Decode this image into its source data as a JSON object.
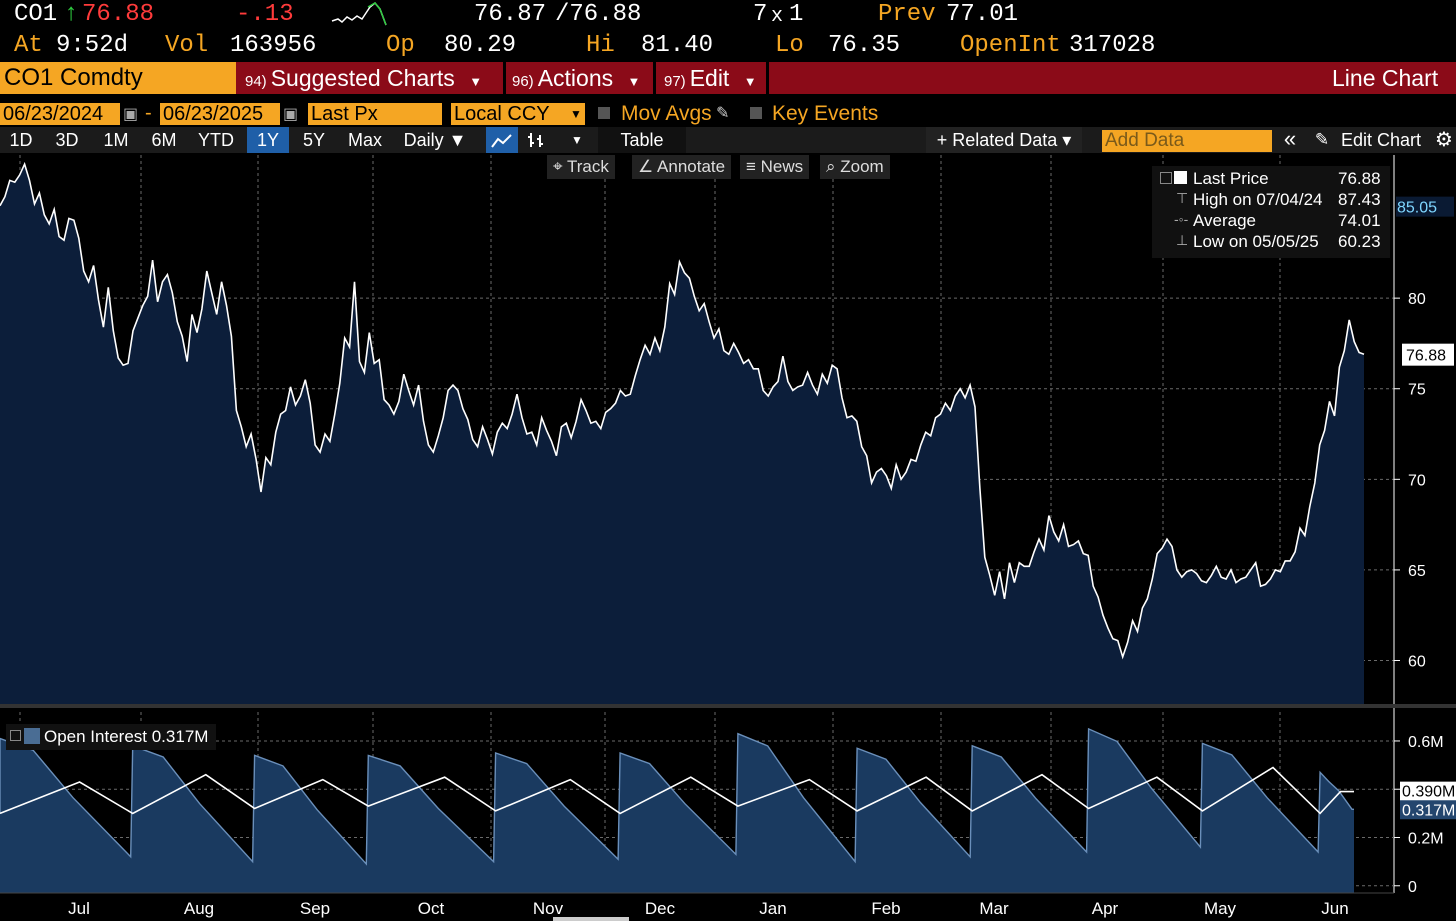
{
  "quote": {
    "ticker": "CO1",
    "arrow": "↑",
    "last": "76.88",
    "change": "-.13",
    "bid_ask": "76.87",
    "ask": "/76.88",
    "size": "7",
    "size_x": "x",
    "size2": "1",
    "prev_label": "Prev",
    "prev": "77.01",
    "at_label": "At",
    "at_time": "9:52d",
    "vol_label": "Vol",
    "vol": "163956",
    "op_label": "Op",
    "op": "80.29",
    "hi_label": "Hi",
    "hi": "81.40",
    "lo_label": "Lo",
    "lo": "76.35",
    "openint_label": "OpenInt",
    "openint": "317028"
  },
  "menubar": {
    "security": "CO1 Comdty",
    "items": [
      {
        "num": "94)",
        "label": "Suggested Charts"
      },
      {
        "num": "96)",
        "label": "Actions"
      },
      {
        "num": "97)",
        "label": "Edit"
      }
    ],
    "right_label": "Line Chart"
  },
  "range": {
    "start": "06/23/2024",
    "dash": "-",
    "end": "06/23/2025",
    "field": "Last Px",
    "currency": "Local CCY",
    "mov_avgs": "Mov Avgs",
    "key_events": "Key Events"
  },
  "toolbar": {
    "periods": [
      "1D",
      "3D",
      "1M",
      "6M",
      "YTD",
      "1Y",
      "5Y",
      "Max"
    ],
    "active_period": "1Y",
    "frequency": "Daily ▼",
    "table": "Table",
    "related": "+ Related Data ▾",
    "add_data_placeholder": "Add Data",
    "collapse": "«",
    "edit_chart": "Edit Chart"
  },
  "tools": {
    "track": "Track",
    "annotate": "Annotate",
    "news": "News",
    "zoom": "Zoom"
  },
  "legend": {
    "rows": [
      {
        "label": "Last Price",
        "value": "76.88"
      },
      {
        "label": "High on 07/04/24",
        "value": "87.43"
      },
      {
        "label": "Average",
        "value": "74.01"
      },
      {
        "label": "Low on 05/05/25",
        "value": "60.23"
      }
    ]
  },
  "lower_legend": {
    "label": "Open Interest 0.317M"
  },
  "colors": {
    "amber": "#f5a623",
    "price_fill": "#0c1e3a",
    "oi_fill": "#1a3a60",
    "menubar": "#8b0b18",
    "active_tab": "#1f5fa8"
  },
  "chart_data": [
    {
      "type": "area",
      "title": "",
      "series": [
        {
          "name": "Last Price"
        }
      ],
      "x_ticks": [
        "Jul",
        "Aug",
        "Sep",
        "Oct",
        "Nov",
        "Dec",
        "Jan",
        "Feb",
        "Mar",
        "Apr",
        "May",
        "Jun"
      ],
      "y_ticks": [
        60,
        65,
        70,
        75,
        80
      ],
      "ylim": [
        57.6,
        87.9
      ],
      "current_label": "76.88",
      "marker_label": "85.05",
      "marker_value": 85.05,
      "grid": true,
      "values": [
        85.1,
        85.6,
        86.5,
        86.4,
        86.8,
        87.4,
        86.5,
        85.2,
        85.8,
        84.6,
        84.1,
        84.9,
        83.4,
        83.2,
        84.4,
        84.3,
        83.3,
        81.5,
        80.9,
        81.8,
        79.9,
        78.4,
        80.6,
        78.2,
        76.7,
        76.3,
        76.4,
        78.2,
        78.9,
        79.6,
        80.1,
        82.1,
        79.8,
        80.9,
        81.3,
        80.3,
        78.7,
        77.9,
        76.5,
        79.1,
        78.1,
        79.4,
        81.5,
        80.3,
        79.1,
        80.9,
        79.6,
        77.9,
        73.8,
        72.9,
        71.8,
        72.5,
        71.1,
        69.3,
        71.2,
        70.8,
        72.6,
        73.6,
        73.8,
        75.1,
        74.1,
        74.6,
        75.5,
        74.2,
        71.9,
        71.5,
        72.5,
        72.1,
        73.6,
        75.3,
        77.8,
        77.3,
        80.9,
        76.5,
        75.9,
        78.1,
        76.4,
        76.6,
        74.4,
        74.1,
        73.6,
        74.3,
        75.8,
        74.9,
        74.1,
        75.2,
        73.2,
        71.9,
        71.5,
        72.4,
        73.4,
        74.9,
        75.2,
        74.9,
        73.9,
        73.3,
        72.2,
        71.8,
        72.9,
        72.2,
        71.4,
        72.6,
        73.1,
        72.8,
        73.6,
        74.7,
        73.4,
        72.5,
        72.6,
        71.9,
        73.4,
        72.7,
        72.1,
        71.3,
        72.9,
        73.1,
        72.3,
        73.2,
        74.4,
        73.8,
        73.1,
        73.2,
        72.8,
        73.7,
        73.9,
        74.2,
        74.9,
        74.6,
        74.7,
        75.7,
        76.6,
        77.4,
        76.9,
        77.8,
        77.1,
        78.4,
        80.8,
        80.2,
        82.0,
        81.4,
        81.1,
        80.1,
        79.3,
        79.7,
        78.7,
        77.8,
        78.3,
        77.1,
        76.9,
        77.5,
        77.0,
        76.4,
        76.6,
        76.1,
        76.1,
        74.9,
        74.6,
        75.1,
        75.4,
        76.8,
        75.4,
        74.9,
        75.1,
        75.2,
        75.9,
        75.2,
        74.7,
        75.8,
        75.3,
        76.3,
        76.1,
        74.5,
        73.4,
        73.5,
        73.2,
        71.8,
        71.3,
        69.8,
        70.4,
        70.6,
        70.2,
        69.5,
        70.8,
        70.0,
        70.4,
        71.1,
        71.0,
        71.9,
        72.6,
        72.4,
        73.4,
        73.6,
        74.2,
        73.8,
        74.6,
        75.0,
        74.5,
        75.2,
        74.0,
        69.5,
        65.7,
        64.7,
        63.6,
        64.9,
        63.4,
        65.4,
        64.3,
        65.4,
        65.2,
        65.2,
        66.0,
        66.7,
        66.1,
        68.0,
        67.1,
        66.6,
        67.5,
        66.3,
        66.4,
        66.6,
        65.9,
        65.8,
        64.1,
        63.5,
        62.5,
        61.8,
        61.2,
        61.1,
        60.2,
        61.0,
        62.2,
        61.6,
        62.9,
        63.4,
        64.5,
        65.9,
        66.2,
        66.7,
        66.3,
        65.0,
        64.6,
        64.9,
        65.0,
        64.8,
        64.4,
        64.3,
        64.7,
        65.2,
        64.6,
        64.5,
        65.0,
        64.3,
        64.5,
        64.6,
        65.0,
        65.4,
        64.1,
        64.2,
        64.5,
        65.0,
        64.9,
        65.5,
        65.5,
        66.0,
        67.3,
        66.9,
        68.5,
        69.8,
        71.9,
        72.7,
        74.3,
        73.5,
        76.2,
        77.1,
        78.8,
        77.6,
        77.0,
        76.9
      ]
    },
    {
      "type": "area",
      "title": "",
      "series": [
        {
          "name": "Open Interest"
        }
      ],
      "y_ticks_labels": [
        "0",
        "0.2M",
        "0.4M",
        "0.6M"
      ],
      "y_ticks": [
        0,
        0.2,
        0.4,
        0.6
      ],
      "ylim": [
        -0.03,
        0.72
      ],
      "label_a": "0.390M",
      "label_b": "0.317M",
      "x_ticks": [
        "Jul",
        "Aug",
        "Sep",
        "Oct",
        "Nov",
        "Dec",
        "Jan",
        "Feb",
        "Mar",
        "Apr",
        "May",
        "Jun"
      ],
      "cycle_starts": [
        0.0,
        0.098,
        0.188,
        0.272,
        0.366,
        0.458,
        0.545,
        0.633,
        0.718,
        0.804,
        0.888,
        0.975
      ],
      "cycle_peaks": [
        0.61,
        0.58,
        0.54,
        0.54,
        0.55,
        0.55,
        0.63,
        0.57,
        0.58,
        0.65,
        0.59,
        0.47
      ],
      "cycle_troughs": [
        0.12,
        0.1,
        0.09,
        0.1,
        0.11,
        0.13,
        0.1,
        0.12,
        0.14,
        0.16,
        0.14,
        0.317
      ],
      "trend_low": [
        0.3,
        0.3,
        0.32,
        0.33,
        0.31,
        0.3,
        0.33,
        0.31,
        0.31,
        0.32,
        0.31,
        0.3
      ],
      "trend_high": [
        0.43,
        0.46,
        0.44,
        0.45,
        0.44,
        0.45,
        0.44,
        0.45,
        0.46,
        0.45,
        0.49,
        0.39
      ]
    }
  ]
}
